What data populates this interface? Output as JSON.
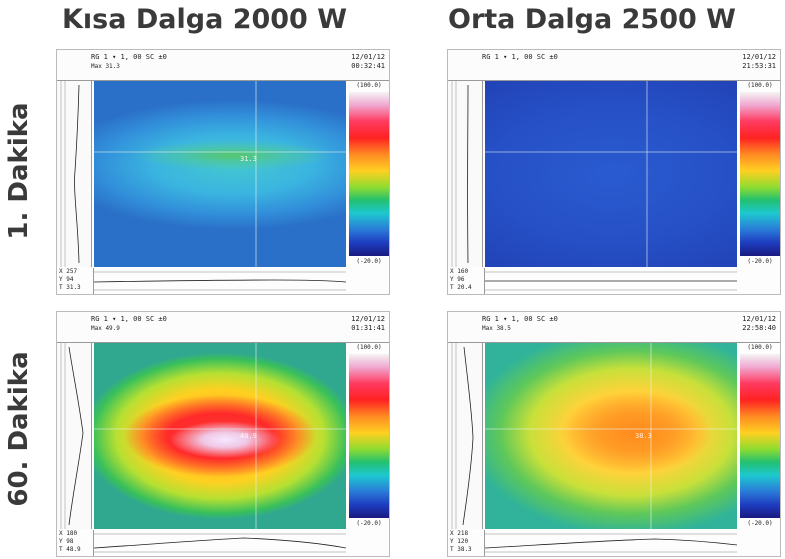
{
  "columns": [
    {
      "title": "Kısa Dalga 2000 W"
    },
    {
      "title": "Orta Dalga 2500 W"
    }
  ],
  "rows": [
    {
      "title": "1. Dakika"
    },
    {
      "title": "60. Dakika"
    }
  ],
  "panels": [
    {
      "header_left": "RG 1 ▾ 1, 00  SC ±0",
      "header_left_line2": "Max 31.3",
      "header_date": "12/01/12",
      "header_time": "00:32:41",
      "scale_max": "(100.0)",
      "scale_min": "(-20.0)",
      "readout_x": "X 257",
      "readout_y": "Y 94",
      "readout_t": "T 31.3",
      "cursor_label": "31.3",
      "palette": "rainbow",
      "state": "mostly-cyan-blue-with-green-band"
    },
    {
      "header_left": "RG 1 ▾ 1, 00  SC ±0",
      "header_left_line2": "",
      "header_date": "12/01/12",
      "header_time": "21:53:31",
      "scale_max": "(100.0)",
      "scale_min": "(-20.0)",
      "readout_x": "X 160",
      "readout_y": "Y 96",
      "readout_t": "T 20.4",
      "cursor_label": "",
      "palette": "rainbow",
      "state": "uniform-blue"
    },
    {
      "header_left": "RG 1 ▾ 1, 00  SC ±0",
      "header_left_line2": "Max 49.9",
      "header_date": "12/01/12",
      "header_time": "01:31:41",
      "scale_max": "(100.0)",
      "scale_min": "(-20.0)",
      "readout_x": "X 180",
      "readout_y": "Y 98",
      "readout_t": "T 48.9",
      "cursor_label": "48.9",
      "palette": "rainbow",
      "state": "hot-red-white-center"
    },
    {
      "header_left": "RG 1 ▾ 1, 00  SC ±0",
      "header_left_line2": "Max 38.5",
      "header_date": "12/01/12",
      "header_time": "22:58:40",
      "scale_max": "(100.0)",
      "scale_min": "(-20.0)",
      "readout_x": "X 218",
      "readout_y": "Y 120",
      "readout_t": "T 38.3",
      "cursor_label": "38.3",
      "palette": "rainbow",
      "state": "warm-orange-center"
    }
  ]
}
